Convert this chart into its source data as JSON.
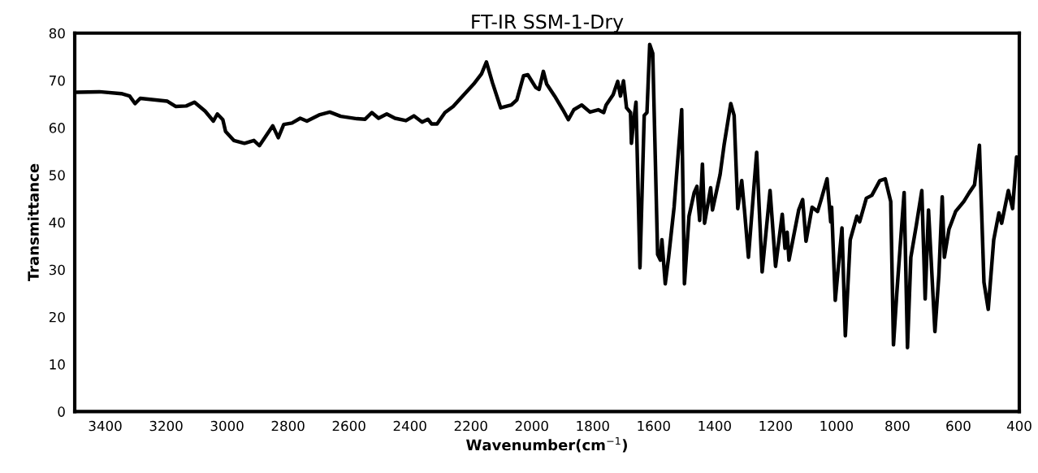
{
  "chart_data": {
    "type": "line",
    "title": "FT-IR SSM-1-Dry",
    "xlabel": "Wavenumber(cm$^{−1}$)",
    "ylabel": "Transmittance",
    "xlim": [
      3500,
      400
    ],
    "xticks": [
      3400,
      3200,
      3000,
      2800,
      2600,
      2400,
      2200,
      2000,
      1800,
      1600,
      1400,
      1200,
      1000,
      800,
      600,
      400
    ],
    "ylim": [
      0,
      80
    ],
    "yticks": [
      0,
      10,
      20,
      30,
      40,
      50,
      60,
      70,
      80
    ],
    "grid": false,
    "marker": "none",
    "line_style": "solid",
    "series": [
      {
        "color": "#000000",
        "x": [
          3493,
          3419,
          3347,
          3320,
          3302,
          3285,
          3196,
          3169,
          3134,
          3107,
          3072,
          3045,
          3032,
          3014,
          3005,
          2978,
          2943,
          2912,
          2894,
          2876,
          2850,
          2832,
          2814,
          2787,
          2760,
          2738,
          2698,
          2663,
          2627,
          2574,
          2547,
          2525,
          2503,
          2476,
          2449,
          2413,
          2387,
          2360,
          2341,
          2329,
          2311,
          2285,
          2258,
          2227,
          2191,
          2165,
          2149,
          2129,
          2102,
          2067,
          2049,
          2027,
          2013,
          1987,
          1976,
          1962,
          1951,
          1925,
          1898,
          1880,
          1862,
          1836,
          1809,
          1782,
          1764,
          1756,
          1733,
          1718,
          1709,
          1699,
          1689,
          1676,
          1673,
          1667,
          1658,
          1645,
          1631,
          1622,
          1613,
          1603,
          1587,
          1578,
          1573,
          1562,
          1551,
          1533,
          1524,
          1508,
          1499,
          1484,
          1467,
          1458,
          1449,
          1440,
          1433,
          1413,
          1407,
          1382,
          1369,
          1347,
          1336,
          1324,
          1311,
          1302,
          1289,
          1262,
          1244,
          1218,
          1200,
          1178,
          1169,
          1162,
          1156,
          1124,
          1111,
          1100,
          1080,
          1062,
          1049,
          1031,
          1019,
          1016,
          1004,
          991,
          982,
          971,
          955,
          933,
          924,
          902,
          884,
          858,
          840,
          822,
          813,
          802,
          778,
          767,
          756,
          738,
          720,
          709,
          698,
          677,
          664,
          653,
          646,
          631,
          609,
          582,
          564,
          547,
          531,
          516,
          502,
          484,
          467,
          458,
          436,
          422,
          409
        ],
        "values": [
          67.5,
          67.6,
          67.2,
          66.7,
          65.1,
          66.2,
          65.6,
          64.5,
          64.6,
          65.4,
          63.5,
          61.4,
          62.9,
          61.7,
          59.2,
          57.3,
          56.7,
          57.3,
          56.2,
          57.9,
          60.4,
          57.9,
          60.7,
          61.0,
          62.0,
          61.4,
          62.7,
          63.3,
          62.4,
          61.9,
          61.8,
          63.2,
          62.0,
          62.9,
          62.0,
          61.5,
          62.5,
          61.2,
          61.8,
          60.8,
          60.8,
          63.2,
          64.5,
          66.7,
          69.2,
          71.4,
          73.9,
          69.5,
          64.2,
          64.8,
          65.9,
          71.0,
          71.2,
          68.5,
          68.1,
          71.9,
          69.2,
          66.7,
          63.8,
          61.7,
          63.8,
          64.8,
          63.3,
          63.8,
          63.2,
          64.8,
          67.0,
          69.8,
          66.7,
          69.9,
          64.2,
          63.2,
          56.7,
          60.7,
          65.4,
          30.4,
          62.6,
          63.2,
          77.6,
          75.7,
          33.2,
          32.0,
          36.3,
          27.0,
          32.6,
          43.2,
          50.7,
          63.8,
          27.0,
          41.3,
          46.3,
          47.6,
          40.4,
          52.3,
          39.8,
          47.3,
          42.6,
          50.1,
          56.3,
          65.1,
          62.6,
          42.9,
          48.8,
          42.6,
          32.6,
          54.8,
          29.5,
          46.7,
          30.7,
          41.7,
          34.5,
          37.9,
          32.0,
          42.6,
          44.8,
          36.0,
          43.2,
          42.3,
          45.1,
          49.2,
          40.1,
          43.2,
          23.5,
          32.6,
          38.8,
          16.0,
          36.3,
          41.3,
          40.1,
          45.1,
          45.7,
          48.8,
          49.2,
          44.4,
          14.1,
          25.1,
          46.3,
          13.5,
          32.6,
          39.4,
          46.7,
          23.8,
          42.6,
          16.9,
          28.8,
          45.4,
          32.6,
          38.5,
          42.3,
          44.4,
          46.3,
          47.9,
          56.3,
          27.3,
          21.6,
          36.3,
          42.0,
          39.8,
          46.7,
          42.9,
          53.8
        ]
      }
    ]
  }
}
